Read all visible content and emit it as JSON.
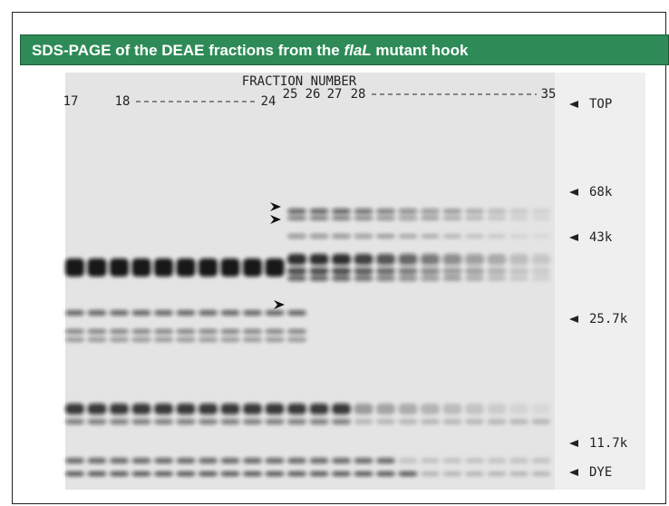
{
  "title": {
    "before": "SDS-PAGE of the DEAE fractions from the ",
    "italic": "flaL",
    "after": " mutant hook"
  },
  "gel": {
    "heading": "FRACTION NUMBER",
    "lanes": [
      "17",
      "18",
      "24",
      "25",
      "26",
      "27",
      "28",
      "35"
    ],
    "markers": [
      "TOP",
      "68k",
      "43k",
      "25.7k",
      "11.7k",
      "DYE"
    ]
  }
}
